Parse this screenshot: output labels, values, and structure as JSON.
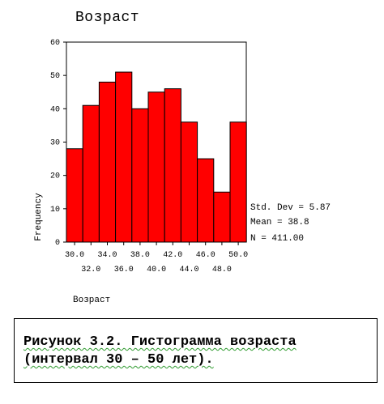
{
  "chart_data": {
    "type": "histogram",
    "title": "Возраст",
    "xlabel": "Возраст",
    "ylabel": "Frequency",
    "ylim": [
      0,
      60
    ],
    "yticks": [
      "0",
      "10",
      "20",
      "30",
      "40",
      "50",
      "60"
    ],
    "xticks_row1": [
      "30.0",
      "34.0",
      "38.0",
      "42.0",
      "46.0",
      "50.0"
    ],
    "xticks_row2": [
      "32.0",
      "36.0",
      "40.0",
      "44.0",
      "48.0"
    ],
    "bins": [
      "30.0",
      "32.0",
      "34.0",
      "36.0",
      "38.0",
      "40.0",
      "42.0",
      "44.0",
      "46.0",
      "48.0",
      "50.0"
    ],
    "values": [
      28,
      41,
      48,
      51,
      40,
      45,
      46,
      36,
      25,
      15,
      36
    ],
    "bar_color": "#ff0000",
    "grid": false,
    "stats": {
      "std_dev": "Std. Dev = 5.87",
      "mean": "Mean = 38.8",
      "n": "N = 411.00"
    }
  },
  "caption": {
    "line1": "Рисунок 3.2. Гистограмма возраста",
    "line2": "(интервал 30 – 50 лет)."
  }
}
